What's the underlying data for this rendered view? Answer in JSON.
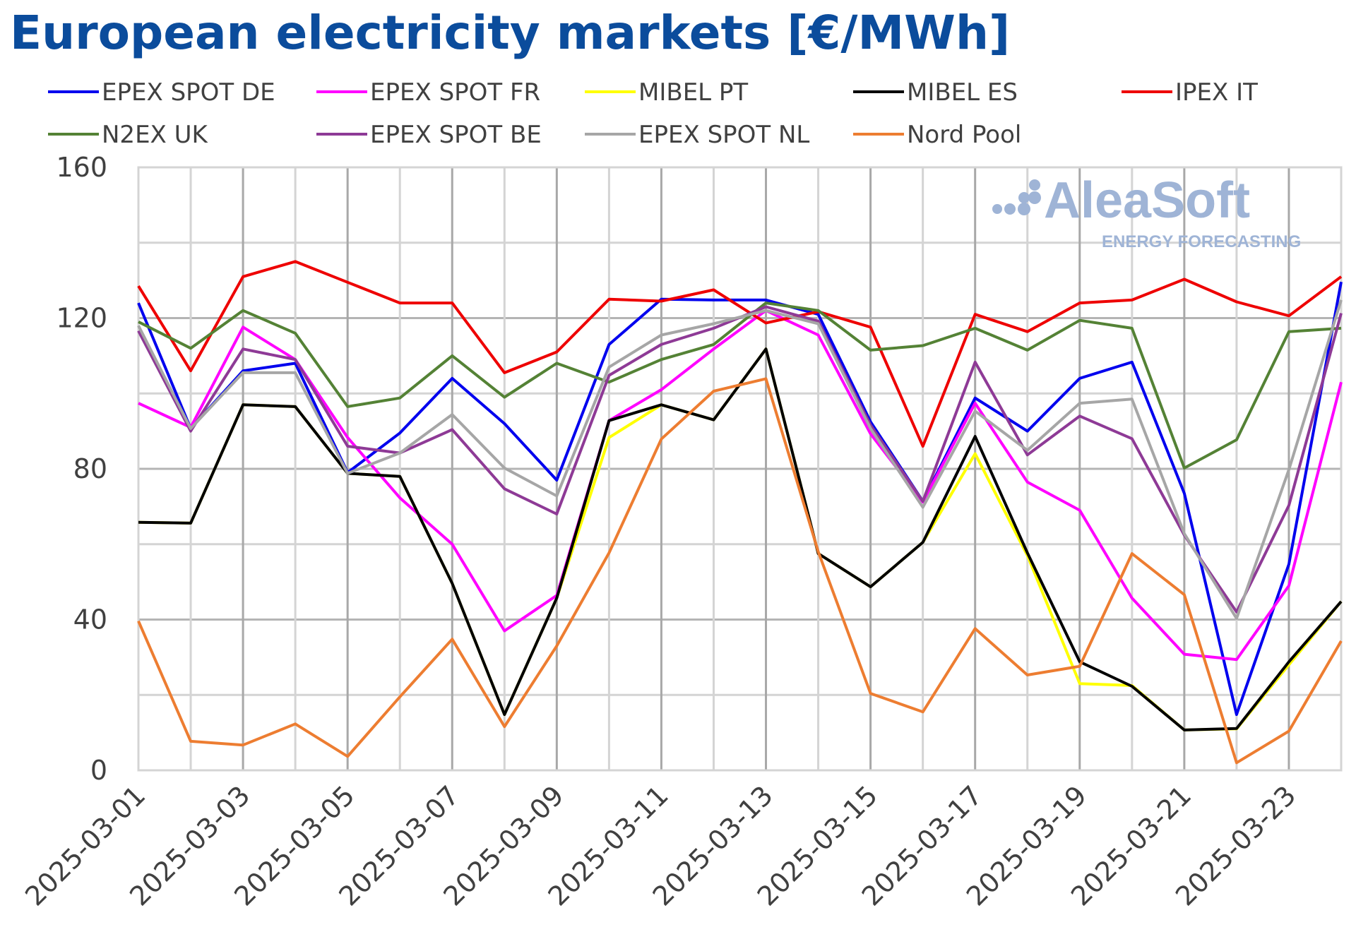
{
  "title": "European electricity markets [€/MWh]",
  "watermark": {
    "brand": "AleaSoft",
    "tagline": "ENERGY FORECASTING",
    "color": "#9fb4d6"
  },
  "chart_data": {
    "type": "line",
    "title": "European electricity markets [€/MWh]",
    "xlabel": "",
    "ylabel": "",
    "ylim": [
      0,
      160
    ],
    "yticks": [
      0,
      40,
      80,
      120,
      160
    ],
    "grid": true,
    "legend_position": "top",
    "x": [
      "2025-03-01",
      "2025-03-02",
      "2025-03-03",
      "2025-03-04",
      "2025-03-05",
      "2025-03-06",
      "2025-03-07",
      "2025-03-08",
      "2025-03-09",
      "2025-03-10",
      "2025-03-11",
      "2025-03-12",
      "2025-03-13",
      "2025-03-14",
      "2025-03-15",
      "2025-03-16",
      "2025-03-17",
      "2025-03-18",
      "2025-03-19",
      "2025-03-20",
      "2025-03-21",
      "2025-03-22",
      "2025-03-23",
      "2025-03-24"
    ],
    "xtick_labels": [
      "2025-03-01",
      "2025-03-03",
      "2025-03-05",
      "2025-03-07",
      "2025-03-09",
      "2025-03-11",
      "2025-03-13",
      "2025-03-15",
      "2025-03-17",
      "2025-03-19",
      "2025-03-21",
      "2025-03-23"
    ],
    "series": [
      {
        "name": "EPEX SPOT DE",
        "color": "#0000ee",
        "values": [
          124,
          90.7,
          106,
          108,
          79,
          89.5,
          104,
          92,
          77,
          113,
          125,
          124.8,
          124.8,
          121,
          92.5,
          71.4,
          98.8,
          90,
          104,
          108.3,
          73.5,
          14.8,
          54.7,
          129.6
        ]
      },
      {
        "name": "EPEX SPOT FR",
        "color": "#ff00ff",
        "values": [
          97.4,
          91,
          117.6,
          109,
          88.3,
          72.3,
          60,
          37,
          46.4,
          92.8,
          101,
          111.8,
          122,
          115.5,
          89.3,
          71.2,
          97.4,
          76.5,
          69,
          45.7,
          30.8,
          29.4,
          49,
          103
        ]
      },
      {
        "name": "MIBEL PT",
        "color": "#ffff00",
        "values": [
          65.8,
          65.6,
          97,
          96.5,
          78.8,
          78,
          49.6,
          14.8,
          45.7,
          88.3,
          97,
          93,
          111.8,
          57.5,
          48.7,
          60.5,
          84,
          57,
          23,
          22.5,
          10.7,
          11,
          28,
          44.8
        ]
      },
      {
        "name": "MIBEL ES",
        "color": "#000000",
        "values": [
          65.8,
          65.6,
          97,
          96.5,
          78.8,
          78,
          49.6,
          14.8,
          45.7,
          92.8,
          97,
          93,
          111.8,
          57.5,
          48.7,
          60.5,
          88.6,
          57.7,
          28.8,
          22.3,
          10.7,
          11.1,
          28.8,
          44.8
        ]
      },
      {
        "name": "IPEX IT",
        "color": "#ee0000",
        "values": [
          128.5,
          106,
          131,
          135,
          129.5,
          124,
          124,
          105.5,
          111,
          125,
          124.5,
          127.5,
          118.7,
          121.7,
          117.6,
          86,
          121,
          116.4,
          124,
          124.8,
          130.3,
          124.3,
          120.6,
          131
        ]
      },
      {
        "name": "N2EX UK",
        "color": "#548235",
        "values": [
          119,
          112,
          122,
          116,
          96.5,
          98.8,
          110,
          99,
          108,
          103,
          109,
          113,
          124,
          122,
          111.5,
          112.7,
          117.3,
          111.5,
          119.4,
          117.3,
          80.2,
          87.7,
          116.4,
          117.3
        ]
      },
      {
        "name": "EPEX SPOT BE",
        "color": "#8e3a96",
        "values": [
          116.6,
          90,
          111.8,
          109,
          86,
          84.2,
          90.4,
          74.7,
          68,
          104.8,
          113,
          117.3,
          123,
          119.2,
          91.6,
          71.4,
          108.3,
          83.7,
          94,
          88,
          62.4,
          42,
          70.3,
          121.3
        ]
      },
      {
        "name": "EPEX SPOT NL",
        "color": "#a6a6a6",
        "values": [
          118,
          90.7,
          105.5,
          105.5,
          78.8,
          84.2,
          94.4,
          80.2,
          72.8,
          107,
          115.5,
          118.5,
          122,
          118.5,
          90.7,
          69.8,
          95.3,
          84.9,
          97.4,
          98.5,
          62.8,
          40.3,
          79.8,
          124.8
        ]
      },
      {
        "name": "Nord Pool",
        "color": "#ed7d31",
        "values": [
          39.6,
          7.7,
          6.7,
          12.3,
          3.7,
          19.5,
          34.8,
          11.6,
          33,
          57.7,
          87.9,
          100.6,
          103.9,
          58,
          20.4,
          15.5,
          37.6,
          25.3,
          27.6,
          57.5,
          46.6,
          2,
          10.4,
          34.3
        ]
      }
    ]
  }
}
